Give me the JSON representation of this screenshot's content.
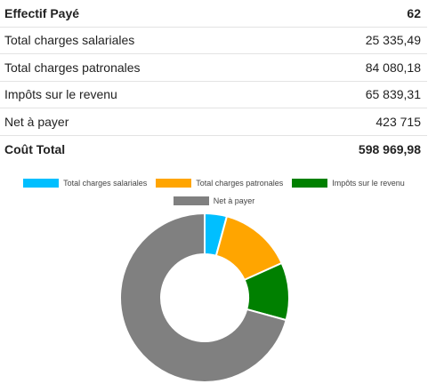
{
  "summary": {
    "rows": [
      {
        "label": "Effectif Payé",
        "value": "62",
        "bold": true
      },
      {
        "label": "Total charges salariales",
        "value": "25 335,49",
        "bold": false
      },
      {
        "label": "Total charges patronales",
        "value": "84 080,18",
        "bold": false
      },
      {
        "label": "Impôts sur le revenu",
        "value": "65 839,31",
        "bold": false
      },
      {
        "label": "Net à payer",
        "value": "423 715",
        "bold": false
      },
      {
        "label": "Coût Total",
        "value": "598 969,98",
        "bold": true
      }
    ]
  },
  "chart_data": {
    "type": "pie",
    "variant": "doughnut",
    "legend_position": "top",
    "categories": [
      "Total charges salariales",
      "Total charges patronales",
      "Impôts sur le revenu",
      "Net à payer"
    ],
    "values": [
      25335.49,
      84080.18,
      65839.31,
      423715
    ],
    "colors": [
      "#00bfff",
      "#ffa500",
      "#008000",
      "#808080"
    ]
  }
}
